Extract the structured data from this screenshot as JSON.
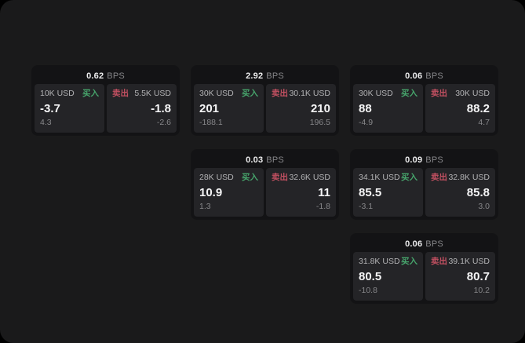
{
  "colors": {
    "window_background": "#1a1a1b",
    "card_background": "#131315",
    "panel_background": "#242427",
    "buy_accent": "#47a56c",
    "sell_accent": "#c25061",
    "price_text": "#f5f5f6",
    "muted_text": "#87878a"
  },
  "cards": [
    {
      "bps": "0.62",
      "unit": "BPS",
      "row": 1,
      "col": 1,
      "buy": {
        "amount": "10K USD",
        "label": "买入",
        "price": "-3.7",
        "delta": "4.3"
      },
      "sell": {
        "label": "卖出",
        "amount": "5.5K USD",
        "price": "-1.8",
        "delta": "-2.6"
      }
    },
    {
      "bps": "2.92",
      "unit": "BPS",
      "row": 1,
      "col": 2,
      "buy": {
        "amount": "30K USD",
        "label": "买入",
        "price": "201",
        "delta": "-188.1"
      },
      "sell": {
        "label": "卖出",
        "amount": "30.1K USD",
        "price": "210",
        "delta": "196.5"
      }
    },
    {
      "bps": "0.06",
      "unit": "BPS",
      "row": 1,
      "col": 3,
      "buy": {
        "amount": "30K USD",
        "label": "买入",
        "price": "88",
        "delta": "-4.9"
      },
      "sell": {
        "label": "卖出",
        "amount": "30K USD",
        "price": "88.2",
        "delta": "4.7"
      }
    },
    {
      "bps": "0.03",
      "unit": "BPS",
      "row": 2,
      "col": 2,
      "buy": {
        "amount": "28K USD",
        "label": "买入",
        "price": "10.9",
        "delta": "1.3"
      },
      "sell": {
        "label": "卖出",
        "amount": "32.6K USD",
        "price": "11",
        "delta": "-1.8"
      }
    },
    {
      "bps": "0.09",
      "unit": "BPS",
      "row": 2,
      "col": 3,
      "buy": {
        "amount": "34.1K USD",
        "label": "买入",
        "price": "85.5",
        "delta": "-3.1"
      },
      "sell": {
        "label": "卖出",
        "amount": "32.8K USD",
        "price": "85.8",
        "delta": "3.0"
      }
    },
    {
      "bps": "0.06",
      "unit": "BPS",
      "row": 3,
      "col": 3,
      "buy": {
        "amount": "31.8K USD",
        "label": "买入",
        "price": "80.5",
        "delta": "-10.8"
      },
      "sell": {
        "label": "卖出",
        "amount": "39.1K USD",
        "price": "80.7",
        "delta": "10.2"
      }
    }
  ]
}
